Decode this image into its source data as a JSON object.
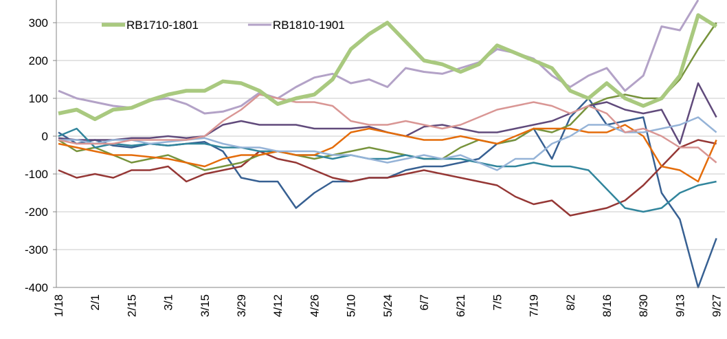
{
  "chart_data": {
    "type": "line",
    "categories": [
      "1/18",
      null,
      "2/1",
      null,
      "2/15",
      null,
      "3/1",
      null,
      "3/15",
      null,
      "3/29",
      null,
      "4/12",
      null,
      "4/26",
      null,
      "5/10",
      null,
      "5/24",
      null,
      "6/7",
      null,
      "6/21",
      null,
      "7/5",
      null,
      "7/19",
      null,
      "8/2",
      null,
      "8/16",
      null,
      "8/30",
      null,
      "9/13",
      null,
      "9/27"
    ],
    "ylim": [
      -400,
      360
    ],
    "yticks": [
      -400,
      -300,
      -200,
      -100,
      0,
      100,
      200,
      300
    ],
    "grid": true,
    "legend": "top-left",
    "series": [
      {
        "name": "RB1710-1801",
        "color": "#a9c97f",
        "values": [
          60,
          70,
          45,
          70,
          75,
          95,
          110,
          120,
          120,
          145,
          140,
          120,
          85,
          100,
          110,
          150,
          230,
          270,
          300,
          250,
          200,
          190,
          170,
          190,
          240,
          220,
          200,
          180,
          120,
          100,
          140,
          100,
          80,
          100,
          160,
          320,
          290
        ]
      },
      {
        "name": "RB1810-1901",
        "color": "#b3a2c7",
        "values": [
          120,
          100,
          90,
          80,
          75,
          95,
          100,
          85,
          60,
          65,
          80,
          115,
          100,
          130,
          155,
          165,
          140,
          150,
          130,
          180,
          170,
          165,
          180,
          195,
          230,
          220,
          205,
          160,
          130,
          160,
          180,
          120,
          160,
          290,
          280,
          360,
          null
        ]
      },
      {
        "color": "#376092",
        "values": [
          10,
          -20,
          -10,
          -25,
          -30,
          -20,
          -25,
          -20,
          -15,
          -40,
          -110,
          -120,
          -120,
          -190,
          -150,
          -120,
          -120,
          -110,
          -110,
          -90,
          -80,
          -80,
          -70,
          -60,
          -20,
          -10,
          20,
          -60,
          50,
          100,
          30,
          40,
          50,
          -150,
          -220,
          -400,
          -270
        ]
      },
      {
        "color": "#953735",
        "values": [
          -90,
          -110,
          -100,
          -110,
          -90,
          -90,
          -80,
          -120,
          -100,
          -90,
          -80,
          -40,
          -60,
          -70,
          -90,
          -110,
          -120,
          -110,
          -110,
          -100,
          -90,
          -100,
          -110,
          -120,
          -130,
          -160,
          -180,
          -170,
          -210,
          -200,
          -190,
          -170,
          -130,
          -80,
          -30,
          -10,
          -20
        ]
      },
      {
        "color": "#77933c",
        "values": [
          -10,
          -40,
          -30,
          -50,
          -70,
          -60,
          -50,
          -70,
          -90,
          -80,
          -70,
          -50,
          -40,
          -50,
          -60,
          -50,
          -40,
          -30,
          -40,
          -50,
          -60,
          -60,
          -30,
          -10,
          -20,
          -10,
          20,
          10,
          30,
          80,
          100,
          110,
          100,
          100,
          150,
          230,
          300
        ]
      },
      {
        "color": "#604a7b",
        "values": [
          -5,
          -10,
          -10,
          -10,
          -5,
          -5,
          0,
          -5,
          0,
          30,
          40,
          30,
          30,
          30,
          20,
          20,
          20,
          25,
          10,
          0,
          25,
          30,
          20,
          10,
          10,
          20,
          30,
          40,
          60,
          80,
          90,
          70,
          60,
          70,
          -20,
          140,
          50
        ]
      },
      {
        "color": "#31859c",
        "values": [
          0,
          20,
          -30,
          -20,
          -25,
          -20,
          -25,
          -20,
          -20,
          -30,
          -30,
          -40,
          -40,
          -50,
          -50,
          -60,
          -50,
          -60,
          -60,
          -50,
          -60,
          -60,
          -60,
          -70,
          -80,
          -80,
          -70,
          -80,
          -80,
          -90,
          -140,
          -190,
          -200,
          -190,
          -150,
          -130,
          -120
        ]
      },
      {
        "color": "#e46c0a",
        "values": [
          -20,
          -30,
          -40,
          -50,
          -50,
          -55,
          -60,
          -70,
          -80,
          -60,
          -50,
          -50,
          -40,
          -50,
          -50,
          -30,
          10,
          20,
          10,
          0,
          -10,
          -10,
          0,
          -10,
          -20,
          0,
          20,
          20,
          20,
          10,
          10,
          30,
          0,
          -80,
          -90,
          -120,
          -10
        ]
      },
      {
        "color": "#95b3d7",
        "values": [
          -10,
          -10,
          -20,
          -10,
          -10,
          -20,
          -15,
          -10,
          -5,
          -20,
          -30,
          -30,
          -40,
          -40,
          -40,
          -50,
          -50,
          -60,
          -70,
          -60,
          -50,
          -60,
          -50,
          -70,
          -90,
          -60,
          -60,
          -20,
          0,
          30,
          30,
          10,
          10,
          20,
          30,
          50,
          10
        ]
      },
      {
        "color": "#d99694",
        "values": [
          -10,
          -20,
          -20,
          -20,
          -10,
          -10,
          -10,
          -10,
          0,
          40,
          70,
          110,
          100,
          90,
          90,
          80,
          40,
          30,
          30,
          40,
          30,
          20,
          30,
          50,
          70,
          80,
          90,
          80,
          60,
          80,
          60,
          10,
          20,
          0,
          -30,
          -30,
          -70
        ]
      }
    ]
  }
}
